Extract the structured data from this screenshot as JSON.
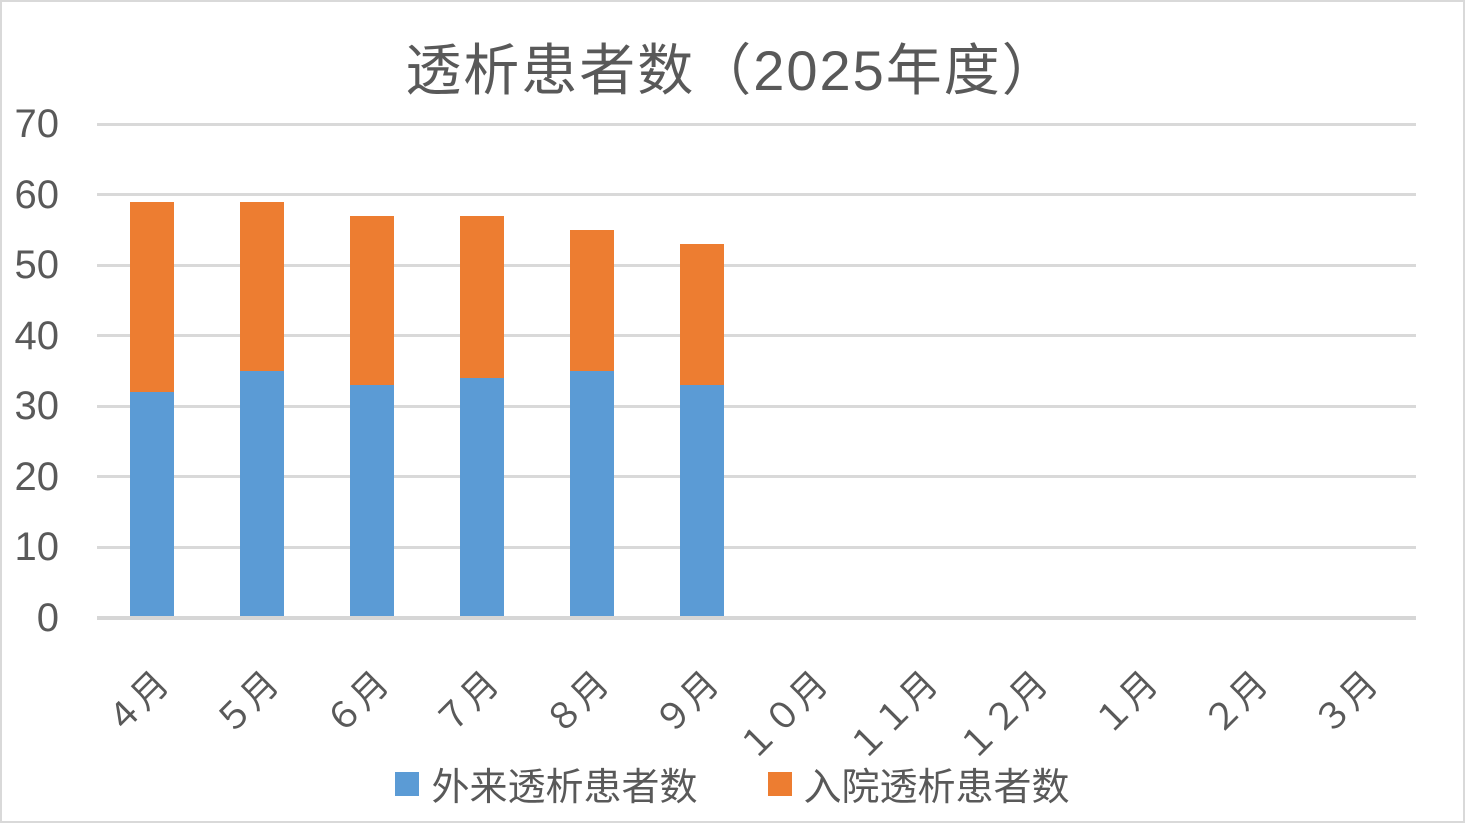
{
  "window": {
    "background": "#ffffff",
    "border_color": "#d9d9d9"
  },
  "chart_data": {
    "type": "bar",
    "stacked": true,
    "title": "透析患者数（2025年度）",
    "categories": [
      "４月",
      "５月",
      "６月",
      "７月",
      "８月",
      "９月",
      "１０月",
      "１１月",
      "１２月",
      "１月",
      "２月",
      "３月"
    ],
    "series": [
      {
        "name": "外来透析患者数",
        "color": "#5b9bd5",
        "values": [
          32,
          35,
          33,
          34,
          35,
          33,
          null,
          null,
          null,
          null,
          null,
          null
        ]
      },
      {
        "name": "入院透析患者数",
        "color": "#ed7d31",
        "values": [
          27,
          24,
          24,
          23,
          20,
          20,
          null,
          null,
          null,
          null,
          null,
          null
        ]
      }
    ],
    "stack_totals": [
      59,
      59,
      57,
      57,
      55,
      53,
      null,
      null,
      null,
      null,
      null,
      null
    ],
    "xlabel": "",
    "ylabel": "",
    "ylim": [
      0,
      70
    ],
    "ytick_step": 10,
    "yticks": [
      0,
      10,
      20,
      30,
      40,
      50,
      60,
      70
    ],
    "grid": true,
    "gridline_color": "#d9d9d9",
    "axisline_color": "#d6d6d6",
    "text_color": "#595959",
    "legend_position": "bottom",
    "x_tick_rotation_deg": 45
  }
}
